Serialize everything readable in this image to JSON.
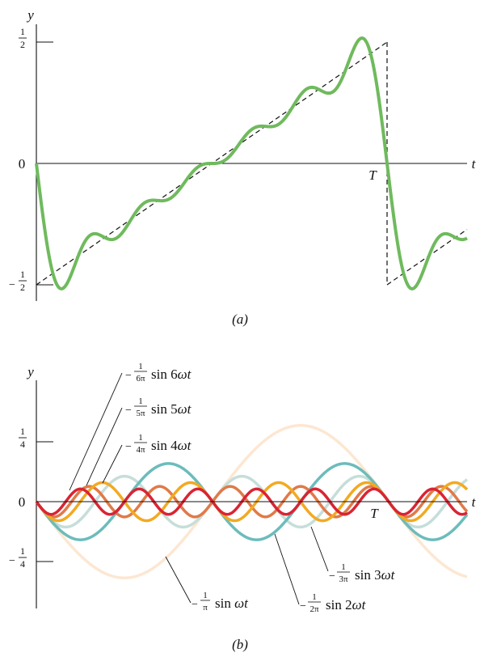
{
  "figure": {
    "panel_a": {
      "label": "(a)",
      "y_axis_label": "y",
      "t_axis_label": "t",
      "period_label": "T",
      "tick_top": {
        "num": "1",
        "den": "2",
        "sign": ""
      },
      "tick_zero": "0",
      "tick_bottom": {
        "num": "1",
        "den": "2",
        "sign": "−"
      }
    },
    "panel_b": {
      "label": "(b)",
      "y_axis_label": "y",
      "t_axis_label": "t",
      "period_label": "T",
      "tick_top": {
        "num": "1",
        "den": "4",
        "sign": ""
      },
      "tick_zero": "0",
      "tick_bottom": {
        "num": "1",
        "den": "4",
        "sign": "−"
      },
      "annotations": [
        {
          "id": "h6",
          "sign": "−",
          "num": "1",
          "den": "6π",
          "func": "sin 6",
          "var": "ωt"
        },
        {
          "id": "h5",
          "sign": "−",
          "num": "1",
          "den": "5π",
          "func": "sin 5",
          "var": "ωt"
        },
        {
          "id": "h4",
          "sign": "−",
          "num": "1",
          "den": "4π",
          "func": "sin 4",
          "var": "ωt"
        },
        {
          "id": "h3",
          "sign": "−",
          "num": "1",
          "den": "3π",
          "func": "sin 3",
          "var": "ωt"
        },
        {
          "id": "h2",
          "sign": "−",
          "num": "1",
          "den": "2π",
          "func": "sin 2",
          "var": "ωt"
        },
        {
          "id": "h1",
          "sign": "−",
          "num": "1",
          "den": "π",
          "func": "sin ",
          "var": "ωt"
        }
      ]
    },
    "colors": {
      "fourier_sum": "#6fba5d",
      "sawtooth": "#111111",
      "h1": "#fde7d2",
      "h2": "#6cbcbc",
      "h3": "#c6ded9",
      "h4": "#f2aa22",
      "h5": "#e07a48",
      "h6": "#d92433"
    }
  }
}
